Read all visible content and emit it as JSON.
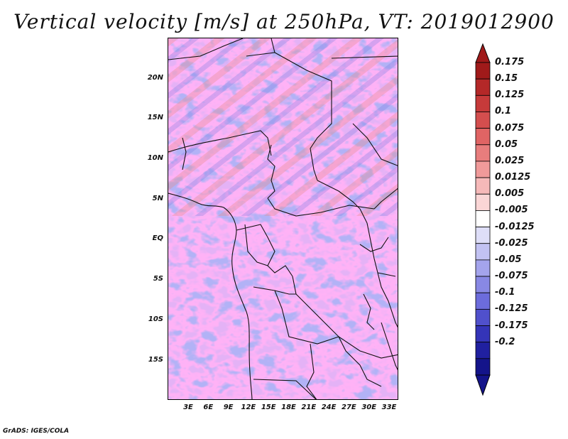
{
  "title": "Vertical velocity [m/s] at 250hPa, VT: 2019012900",
  "footer": "GrADS: IGES/COLA",
  "map": {
    "lon_range": [
      0,
      35
    ],
    "lat_range": [
      -20,
      25
    ],
    "lat_ticks": [
      "20N",
      "15N",
      "10N",
      "5N",
      "EQ",
      "5S",
      "10S",
      "15S"
    ],
    "lon_ticks": [
      "3E",
      "6E",
      "9E",
      "12E",
      "15E",
      "18E",
      "21E",
      "24E",
      "27E",
      "30E",
      "33E"
    ]
  },
  "colorbar": {
    "labels": [
      "0.175",
      "0.15",
      "0.125",
      "0.1",
      "0.075",
      "0.05",
      "0.025",
      "0.0125",
      "0.005",
      "-0.005",
      "-0.0125",
      "-0.025",
      "-0.05",
      "-0.075",
      "-0.1",
      "-0.125",
      "-0.175",
      "-0.2"
    ],
    "colors": [
      "#a01a1a",
      "#b42828",
      "#c63a3a",
      "#d44e4e",
      "#e06464",
      "#e87d7d",
      "#f09a9a",
      "#f6b9b9",
      "#fad6d6",
      "#ffffff",
      "#dedef8",
      "#c2c2f2",
      "#a4a4ec",
      "#8888e4",
      "#6c6cdc",
      "#5050cc",
      "#3434b8",
      "#2020a0",
      "#14148a"
    ]
  }
}
